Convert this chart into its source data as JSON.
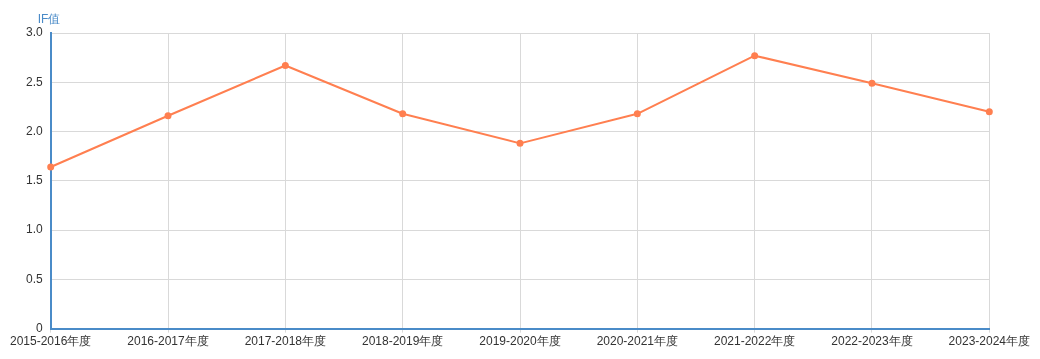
{
  "chart_data": {
    "type": "line",
    "ylabel": "IF值",
    "categories": [
      "2015-2016年度",
      "2016-2017年度",
      "2017-2018年度",
      "2018-2019年度",
      "2019-2020年度",
      "2020-2021年度",
      "2021-2022年度",
      "2022-2023年度",
      "2023-2024年度"
    ],
    "series": [
      {
        "color": "#ff7f50",
        "values": [
          1.64,
          2.16,
          2.67,
          2.18,
          1.88,
          2.18,
          2.77,
          2.49,
          2.2
        ]
      }
    ],
    "ylim": [
      0,
      3
    ],
    "yticks": [
      0,
      {
        "value": 0.5,
        "label": "0.5"
      },
      {
        "value": 1,
        "label": "1.0"
      },
      {
        "value": 1.5,
        "label": "1.5"
      },
      {
        "value": 2,
        "label": "2.0"
      },
      {
        "value": 2.5,
        "label": "2.5"
      },
      {
        "value": 3,
        "label": "3.0"
      }
    ],
    "grid": true,
    "marker": "circle",
    "line_style": "solid",
    "legend": false
  }
}
